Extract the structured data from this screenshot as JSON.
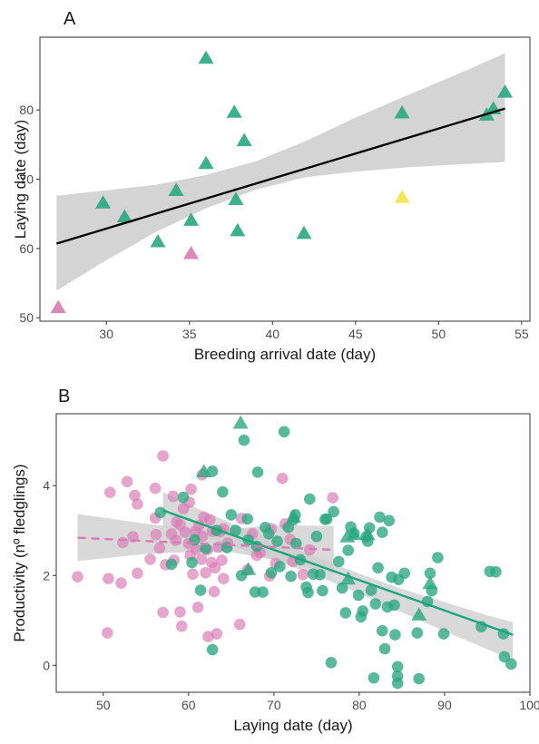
{
  "figure": {
    "panel_a_label": "A",
    "panel_b_label": "B"
  },
  "colors": {
    "green": "#2aa77f",
    "pink": "#d97bb6",
    "yellow": "#f4e34b",
    "fit_a": "#000000",
    "fit_b_green": "#1aa57a",
    "fit_b_pink": "#d97bb6",
    "ribbon": "#cccccc",
    "axis": "#333333",
    "tick_label": "#4d4d4d",
    "axis_title": "#1a1a1a"
  },
  "chart_data": [
    {
      "panel": "A",
      "type": "scatter",
      "xlabel": "Breeding arrival date (day)",
      "ylabel": "Laying date (day)",
      "xlim": [
        26,
        55.5
      ],
      "ylim": [
        49.5,
        90.5
      ],
      "xticks": [
        30,
        35,
        40,
        45,
        50,
        55
      ],
      "yticks": [
        50,
        60,
        70,
        80
      ],
      "grid": false,
      "points": [
        {
          "x": 27.1,
          "y": 51.4,
          "group": "pink",
          "marker": "triangle"
        },
        {
          "x": 29.8,
          "y": 66.5,
          "group": "green",
          "marker": "triangle"
        },
        {
          "x": 31.1,
          "y": 64.5,
          "group": "green",
          "marker": "triangle"
        },
        {
          "x": 33.1,
          "y": 60.9,
          "group": "green",
          "marker": "triangle"
        },
        {
          "x": 34.2,
          "y": 68.3,
          "group": "green",
          "marker": "triangle"
        },
        {
          "x": 35.1,
          "y": 64.0,
          "group": "green",
          "marker": "triangle"
        },
        {
          "x": 35.1,
          "y": 59.2,
          "group": "pink",
          "marker": "triangle"
        },
        {
          "x": 36.0,
          "y": 87.4,
          "group": "green",
          "marker": "triangle"
        },
        {
          "x": 36.0,
          "y": 72.2,
          "group": "green",
          "marker": "triangle"
        },
        {
          "x": 37.7,
          "y": 79.6,
          "group": "green",
          "marker": "triangle"
        },
        {
          "x": 37.8,
          "y": 67.0,
          "group": "green",
          "marker": "triangle"
        },
        {
          "x": 37.9,
          "y": 62.5,
          "group": "green",
          "marker": "triangle"
        },
        {
          "x": 38.3,
          "y": 75.5,
          "group": "green",
          "marker": "triangle"
        },
        {
          "x": 41.9,
          "y": 62.1,
          "group": "green",
          "marker": "triangle"
        },
        {
          "x": 47.8,
          "y": 67.3,
          "group": "yellow",
          "marker": "triangle"
        },
        {
          "x": 47.8,
          "y": 79.5,
          "group": "green",
          "marker": "triangle"
        },
        {
          "x": 52.9,
          "y": 79.2,
          "group": "green",
          "marker": "triangle"
        },
        {
          "x": 53.3,
          "y": 80.1,
          "group": "green",
          "marker": "triangle"
        },
        {
          "x": 54.0,
          "y": 82.5,
          "group": "green",
          "marker": "triangle"
        }
      ],
      "fit": {
        "x": [
          27.0,
          54.0
        ],
        "y": [
          60.7,
          80.2
        ]
      },
      "ribbon": {
        "x": [
          27,
          30,
          33,
          36,
          39,
          42,
          45,
          48,
          51,
          54
        ],
        "lower": [
          53.9,
          58.3,
          62.4,
          65.8,
          68.5,
          70.3,
          71.1,
          71.7,
          72.1,
          72.5
        ],
        "upper": [
          67.6,
          68.4,
          69.2,
          70.6,
          72.6,
          75.5,
          78.9,
          82.0,
          85.0,
          88.2
        ]
      }
    },
    {
      "panel": "B",
      "type": "scatter",
      "xlabel": "Laying date (day)",
      "ylabel": "Productivity (nº fledglings)",
      "xlim": [
        44.5,
        100
      ],
      "ylim": [
        -0.6,
        5.6
      ],
      "xticks": [
        50,
        60,
        70,
        80,
        90,
        100
      ],
      "yticks": [
        0,
        2,
        4
      ],
      "grid": false,
      "series": [
        {
          "name": "",
          "group": "pink",
          "marker": "circle",
          "points": [
            [
              47,
              1.97
            ],
            [
              50.5,
              0.72
            ],
            [
              50.6,
              1.93
            ],
            [
              50.8,
              3.85
            ],
            [
              52.1,
              1.83
            ],
            [
              52.3,
              2.73
            ],
            [
              52.8,
              4.09
            ],
            [
              53.5,
              2.86
            ],
            [
              53.7,
              3.78
            ],
            [
              54.0,
              2.05
            ],
            [
              54.0,
              3.59
            ],
            [
              55.5,
              2.36
            ],
            [
              56.1,
              3.94
            ],
            [
              56.1,
              3.28
            ],
            [
              56.2,
              2.91
            ],
            [
              56.6,
              2.61
            ],
            [
              57.0,
              1.18
            ],
            [
              57.0,
              4.66
            ],
            [
              57.3,
              2.24
            ],
            [
              58.0,
              2.92
            ],
            [
              58.2,
              3.76
            ],
            [
              58.5,
              2.78
            ],
            [
              58.6,
              3.19
            ],
            [
              59.0,
              1.19
            ],
            [
              59.2,
              0.87
            ],
            [
              59.0,
              3.13
            ],
            [
              59.4,
              3.49
            ],
            [
              59.6,
              2.96
            ],
            [
              60.0,
              2.71
            ],
            [
              60.2,
              2.45
            ],
            [
              60.1,
              3.63
            ],
            [
              60.3,
              3.92
            ],
            [
              60.5,
              2.03
            ],
            [
              60.9,
              2.58
            ],
            [
              61.1,
              1.29
            ],
            [
              61.2,
              3.11
            ],
            [
              61.5,
              2.36
            ],
            [
              61.6,
              2.87
            ],
            [
              61.8,
              3.3
            ],
            [
              61.6,
              4.24
            ],
            [
              62.0,
              2.06
            ],
            [
              62.2,
              2.57
            ],
            [
              62.3,
              0.64
            ],
            [
              62.5,
              3.24
            ],
            [
              62.7,
              2.29
            ],
            [
              62.8,
              2.98
            ],
            [
              63.0,
              1.64
            ],
            [
              63.1,
              2.17
            ],
            [
              63.3,
              0.7
            ],
            [
              63.5,
              2.63
            ],
            [
              63.7,
              2.98
            ],
            [
              63.9,
              2.34
            ],
            [
              64.1,
              1.93
            ],
            [
              64.6,
              2.72
            ],
            [
              66.0,
              0.91
            ],
            [
              66.2,
              3.27
            ],
            [
              66.9,
              2.12
            ],
            [
              67.5,
              2.93
            ],
            [
              68.4,
              2.51
            ],
            [
              69.5,
              1.99
            ],
            [
              69.7,
              3.04
            ],
            [
              70.2,
              2.27
            ],
            [
              71.0,
              4.16
            ],
            [
              71.3,
              3.15
            ],
            [
              71.9,
              2.8
            ],
            [
              72.2,
              2.31
            ],
            [
              73.4,
              2.02
            ],
            [
              74.2,
              2.57
            ],
            [
              76.9,
              3.73
            ],
            [
              64.1,
              3.04
            ],
            [
              58.3,
              2.34
            ],
            [
              60.8,
              2.98
            ],
            [
              68.0,
              2.45
            ]
          ]
        },
        {
          "name": "",
          "group": "green",
          "marker": "circle",
          "points": [
            [
              56.7,
              3.4
            ],
            [
              58.0,
              2.25
            ],
            [
              59.4,
              3.74
            ],
            [
              60.4,
              2.29
            ],
            [
              60.7,
              2.79
            ],
            [
              61.4,
              1.67
            ],
            [
              62.0,
              2.6
            ],
            [
              62.8,
              0.35
            ],
            [
              62.8,
              4.32
            ],
            [
              63.3,
              3.0
            ],
            [
              64.0,
              3.86
            ],
            [
              64.5,
              2.62
            ],
            [
              65.0,
              3.35
            ],
            [
              65.5,
              3.0
            ],
            [
              66.2,
              2.0
            ],
            [
              66.5,
              5.01
            ],
            [
              66.9,
              3.26
            ],
            [
              67.0,
              2.79
            ],
            [
              67.8,
              1.63
            ],
            [
              68.0,
              2.65
            ],
            [
              68.1,
              4.3
            ],
            [
              68.7,
              1.63
            ],
            [
              69.0,
              3.07
            ],
            [
              69.4,
              2.93
            ],
            [
              69.7,
              2.06
            ],
            [
              70.4,
              2.76
            ],
            [
              70.7,
              2.2
            ],
            [
              71.2,
              5.2
            ],
            [
              71.7,
              3.07
            ],
            [
              72.0,
              1.98
            ],
            [
              72.3,
              3.24
            ],
            [
              72.5,
              3.35
            ],
            [
              72.6,
              2.71
            ],
            [
              73.1,
              2.35
            ],
            [
              73.8,
              1.74
            ],
            [
              74.0,
              1.62
            ],
            [
              74.2,
              3.7
            ],
            [
              74.6,
              2.03
            ],
            [
              75.0,
              2.87
            ],
            [
              75.4,
              2.02
            ],
            [
              75.7,
              1.66
            ],
            [
              76.0,
              3.25
            ],
            [
              76.2,
              3.26
            ],
            [
              76.7,
              0.06
            ],
            [
              77.0,
              3.42
            ],
            [
              77.6,
              2.31
            ],
            [
              78.0,
              1.72
            ],
            [
              78.4,
              1.17
            ],
            [
              78.7,
              2.56
            ],
            [
              79.0,
              3.08
            ],
            [
              79.4,
              2.94
            ],
            [
              79.9,
              1.56
            ],
            [
              80.2,
              1.08
            ],
            [
              80.4,
              1.21
            ],
            [
              80.8,
              2.86
            ],
            [
              81.0,
              2.76
            ],
            [
              81.2,
              3.06
            ],
            [
              81.4,
              1.67
            ],
            [
              81.7,
              -0.28
            ],
            [
              81.9,
              1.37
            ],
            [
              82.2,
              2.17
            ],
            [
              82.4,
              3.3
            ],
            [
              82.7,
              2.96
            ],
            [
              82.7,
              0.77
            ],
            [
              83.0,
              0.37
            ],
            [
              83.3,
              1.3
            ],
            [
              83.5,
              3.22
            ],
            [
              83.8,
              1.96
            ],
            [
              84.1,
              1.34
            ],
            [
              84.2,
              0.68
            ],
            [
              84.5,
              -0.03
            ],
            [
              84.5,
              -0.24
            ],
            [
              84.5,
              -0.4
            ],
            [
              84.6,
              1.91
            ],
            [
              85.3,
              2.05
            ],
            [
              86.8,
              0.72
            ],
            [
              87.0,
              -0.3
            ],
            [
              88.0,
              1.42
            ],
            [
              88.3,
              2.05
            ],
            [
              88.5,
              1.66
            ],
            [
              89.2,
              2.4
            ],
            [
              89.9,
              0.7
            ],
            [
              94.3,
              0.86
            ],
            [
              95.3,
              2.09
            ],
            [
              96.0,
              2.08
            ],
            [
              96.9,
              0.7
            ],
            [
              97.0,
              0.19
            ],
            [
              97.8,
              0.03
            ]
          ]
        },
        {
          "name": "",
          "group": "green",
          "marker": "triangle",
          "points": [
            [
              61.8,
              4.3
            ],
            [
              66.1,
              5.38
            ],
            [
              67.0,
              2.12
            ],
            [
              72.3,
              3.29
            ],
            [
              78.6,
              2.85
            ],
            [
              79.4,
              2.9
            ],
            [
              81.0,
              2.9
            ],
            [
              87.0,
              1.11
            ],
            [
              88.3,
              1.81
            ],
            [
              78.7,
              1.91
            ]
          ]
        }
      ],
      "fits": [
        {
          "group": "green",
          "dash": "solid",
          "x": [
            57.0,
            98.0
          ],
          "y": [
            3.45,
            0.68
          ]
        },
        {
          "group": "pink",
          "dash": "dashed",
          "x": [
            47.0,
            77.0
          ],
          "y": [
            2.84,
            2.57
          ]
        }
      ],
      "ribbons": [
        {
          "x": [
            47,
            55,
            60,
            65,
            70,
            77
          ],
          "lower": [
            2.32,
            2.48,
            2.52,
            2.52,
            2.35,
            2.05
          ],
          "upper": [
            3.37,
            3.15,
            3.04,
            3.04,
            3.12,
            3.1
          ]
        },
        {
          "x": [
            57,
            60,
            65,
            70,
            75,
            80,
            85,
            90,
            95,
            98
          ],
          "lower": [
            3.08,
            2.94,
            2.66,
            2.34,
            2.0,
            1.6,
            1.18,
            0.76,
            0.36,
            0.12
          ],
          "upper": [
            3.86,
            3.58,
            3.16,
            2.78,
            2.4,
            2.04,
            1.7,
            1.41,
            1.11,
            0.96
          ]
        }
      ]
    }
  ]
}
